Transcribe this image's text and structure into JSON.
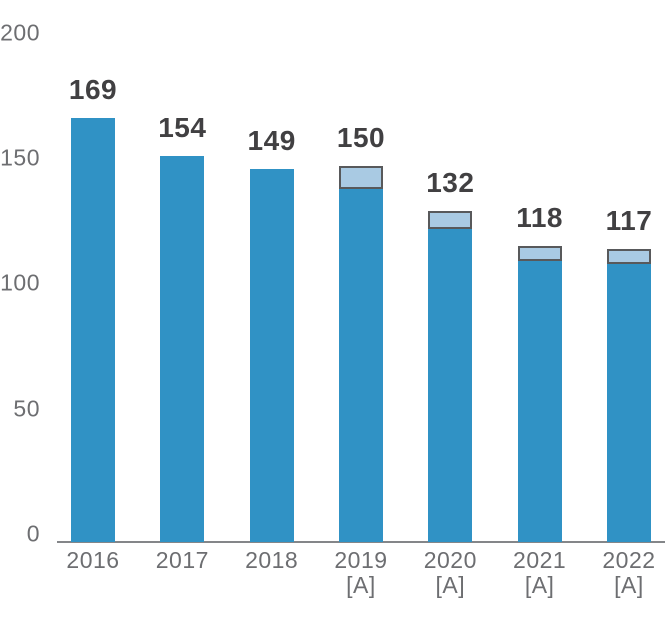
{
  "chart_data": {
    "type": "bar",
    "title": "",
    "xlabel": "",
    "ylabel": "",
    "categories": [
      "2016",
      "2017",
      "2018",
      "2019 [A]",
      "2020 [A]",
      "2021 [A]",
      "2022 [A]"
    ],
    "category_lines": [
      [
        "2016"
      ],
      [
        "2017"
      ],
      [
        "2018"
      ],
      [
        "2019",
        "[A]"
      ],
      [
        "2020",
        "[A]"
      ],
      [
        "2021",
        "[A]"
      ],
      [
        "2022",
        "[A]"
      ]
    ],
    "totals": [
      169,
      154,
      149,
      150,
      132,
      118,
      117
    ],
    "value_labels": [
      "169",
      "154",
      "149",
      "150",
      "132",
      "118",
      "117"
    ],
    "series": [
      {
        "name": "base-segment",
        "values": [
          169,
          154,
          149,
          141,
          125,
          112,
          111
        ]
      },
      {
        "name": "highlight-cap-segment",
        "values": [
          0,
          0,
          0,
          9,
          7,
          6,
          6
        ]
      }
    ],
    "yticks": [
      0,
      50,
      100,
      150,
      200
    ],
    "ylim": [
      0,
      200
    ],
    "grid": false,
    "legend": "none"
  },
  "colors": {
    "bar": "#3092C5",
    "cap_fill": "#A9CAE3",
    "cap_border": "#58595B",
    "value_text": "#414042",
    "axis_text": "#6D6E71",
    "axis_line": "#848689",
    "background": "#FFFFFF"
  }
}
